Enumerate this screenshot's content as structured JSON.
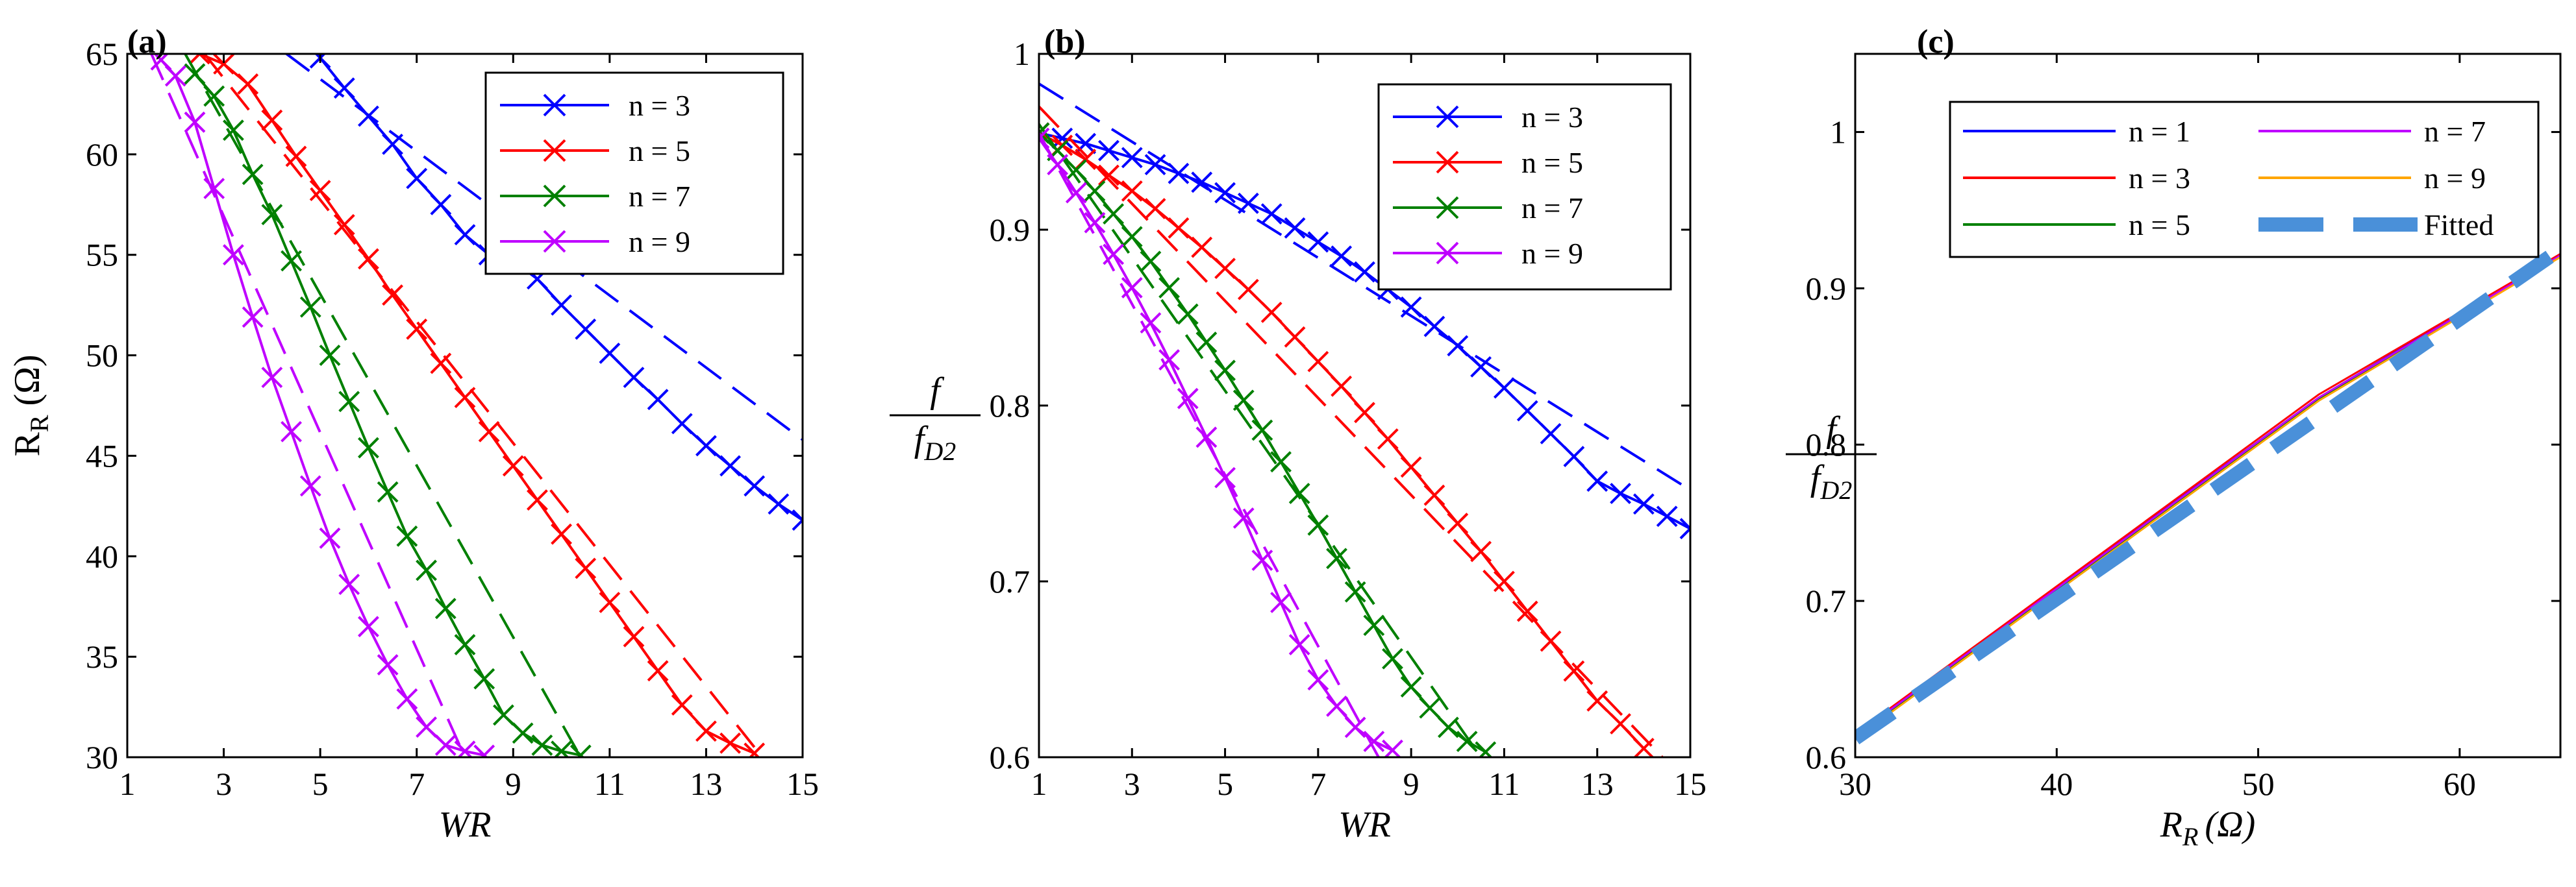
{
  "chart_data": [
    {
      "panel_label": "(a)",
      "type": "line",
      "xlabel": "WR",
      "ylabel": "R_R (Ω)",
      "ylabel_main": "R",
      "ylabel_sub": "R",
      "ylabel_unit": "(Ω)",
      "xlim": [
        1,
        15
      ],
      "ylim": [
        30,
        65
      ],
      "x_ticks": [
        1,
        3,
        5,
        7,
        9,
        11,
        13,
        15
      ],
      "y_ticks": [
        30,
        35,
        40,
        45,
        50,
        55,
        60,
        65
      ],
      "legend": [
        "n = 3",
        "n = 5",
        "n = 7",
        "n = 9"
      ],
      "legend_position": "top-right",
      "series": [
        {
          "name": "n = 3",
          "color": "#0000ff",
          "x": [
            5.0,
            5.5,
            6.0,
            6.5,
            7.0,
            7.5,
            8.0,
            8.5,
            9.0,
            9.5,
            10.0,
            10.5,
            11.0,
            11.5,
            12.0,
            12.5,
            13.0,
            13.5,
            14.0,
            14.5,
            15.0
          ],
          "y": [
            64.8,
            63.3,
            61.9,
            60.5,
            58.8,
            57.5,
            56.0,
            55.0,
            54.7,
            53.8,
            52.5,
            51.3,
            50.1,
            48.9,
            47.8,
            46.6,
            45.5,
            44.5,
            43.5,
            42.6,
            41.8
          ],
          "fit_x": [
            4.3,
            15.0
          ],
          "fit_y": [
            65.0,
            45.8
          ]
        },
        {
          "name": "n = 5",
          "color": "#ff0000",
          "x": [
            2.5,
            3.0,
            3.5,
            4.0,
            4.5,
            5.0,
            5.5,
            6.0,
            6.5,
            7.0,
            7.5,
            8.0,
            8.5,
            9.0,
            9.5,
            10.0,
            10.5,
            11.0,
            11.5,
            12.0,
            12.5,
            13.0,
            13.5,
            14.0
          ],
          "y": [
            65.0,
            64.5,
            63.5,
            61.7,
            59.9,
            58.2,
            56.5,
            54.8,
            53.0,
            51.3,
            49.6,
            47.9,
            46.2,
            44.5,
            42.8,
            41.1,
            39.4,
            37.7,
            36.0,
            34.3,
            32.6,
            31.3,
            30.7,
            30.2
          ],
          "fit_x": [
            2.6,
            14.0
          ],
          "fit_y": [
            65.0,
            30.5
          ]
        },
        {
          "name": "n = 7",
          "color": "#008000",
          "x": [
            2.4,
            2.8,
            3.2,
            3.6,
            4.0,
            4.4,
            4.8,
            5.2,
            5.6,
            6.0,
            6.4,
            6.8,
            7.2,
            7.6,
            8.0,
            8.4,
            8.8,
            9.2,
            9.6,
            10.0,
            10.4
          ],
          "y": [
            64.0,
            62.9,
            61.2,
            59.0,
            57.0,
            54.7,
            52.4,
            50.0,
            47.7,
            45.4,
            43.2,
            41.0,
            39.3,
            37.4,
            35.6,
            33.9,
            32.1,
            31.2,
            30.6,
            30.3,
            30.1
          ],
          "fit_x": [
            2.2,
            10.4
          ],
          "fit_y": [
            65.0,
            30.0
          ]
        },
        {
          "name": "n = 9",
          "color": "#bf00ff",
          "x": [
            1.7,
            2.0,
            2.4,
            2.8,
            3.2,
            3.6,
            4.0,
            4.4,
            4.8,
            5.2,
            5.6,
            6.0,
            6.4,
            6.8,
            7.2,
            7.6,
            8.0,
            8.4
          ],
          "y": [
            64.7,
            63.9,
            61.6,
            58.3,
            55.0,
            51.9,
            48.9,
            46.2,
            43.5,
            40.9,
            38.6,
            36.5,
            34.6,
            32.9,
            31.5,
            30.6,
            30.3,
            30.1
          ],
          "fit_x": [
            1.5,
            8.0
          ],
          "fit_y": [
            65.0,
            30.0
          ]
        }
      ]
    },
    {
      "panel_label": "(b)",
      "type": "line",
      "xlabel": "WR",
      "ylabel": "f / f_D2",
      "ylabel_num": "f",
      "ylabel_den": "f",
      "ylabel_den_sub": "D2",
      "xlim": [
        1,
        15
      ],
      "ylim": [
        0.6,
        1.0
      ],
      "x_ticks": [
        1,
        3,
        5,
        7,
        9,
        11,
        13,
        15
      ],
      "y_ticks": [
        0.6,
        0.7,
        0.8,
        0.9,
        1
      ],
      "y_tick_labels": [
        "0.6",
        "0.7",
        "0.8",
        "0.9",
        "1"
      ],
      "legend": [
        "n = 3",
        "n = 5",
        "n = 7",
        "n = 9"
      ],
      "legend_position": "top-right",
      "series": [
        {
          "name": "n = 3",
          "color": "#0000ff",
          "x": [
            1.0,
            1.5,
            2.0,
            2.5,
            3.0,
            3.5,
            4.0,
            4.5,
            5.0,
            5.5,
            6.0,
            6.5,
            7.0,
            7.5,
            8.0,
            8.5,
            9.0,
            9.5,
            10.0,
            10.5,
            11.0,
            11.5,
            12.0,
            12.5,
            13.0,
            13.5,
            14.0,
            14.5,
            15.0
          ],
          "y": [
            0.955,
            0.952,
            0.949,
            0.945,
            0.941,
            0.937,
            0.932,
            0.927,
            0.921,
            0.915,
            0.909,
            0.901,
            0.893,
            0.885,
            0.876,
            0.866,
            0.856,
            0.845,
            0.834,
            0.822,
            0.81,
            0.797,
            0.784,
            0.771,
            0.757,
            0.75,
            0.744,
            0.737,
            0.73
          ],
          "fit_x": [
            1.0,
            15.0
          ],
          "fit_y": [
            0.983,
            0.752
          ]
        },
        {
          "name": "n = 5",
          "color": "#ff0000",
          "x": [
            1.0,
            1.5,
            2.0,
            2.5,
            3.0,
            3.5,
            4.0,
            4.5,
            5.0,
            5.5,
            6.0,
            6.5,
            7.0,
            7.5,
            8.0,
            8.5,
            9.0,
            9.5,
            10.0,
            10.5,
            11.0,
            11.5,
            12.0,
            12.5,
            13.0,
            13.5,
            14.0
          ],
          "y": [
            0.955,
            0.948,
            0.94,
            0.931,
            0.922,
            0.912,
            0.901,
            0.89,
            0.878,
            0.866,
            0.853,
            0.839,
            0.825,
            0.811,
            0.796,
            0.781,
            0.765,
            0.749,
            0.733,
            0.717,
            0.7,
            0.683,
            0.666,
            0.649,
            0.632,
            0.619,
            0.605
          ],
          "fit_x": [
            1.0,
            14.4
          ],
          "fit_y": [
            0.97,
            0.6
          ]
        },
        {
          "name": "n = 7",
          "color": "#008000",
          "x": [
            1.0,
            1.4,
            1.8,
            2.2,
            2.6,
            3.0,
            3.4,
            3.8,
            4.2,
            4.6,
            5.0,
            5.4,
            5.8,
            6.2,
            6.6,
            7.0,
            7.4,
            7.8,
            8.2,
            8.6,
            9.0,
            9.4,
            9.8,
            10.2,
            10.6
          ],
          "y": [
            0.955,
            0.945,
            0.934,
            0.922,
            0.909,
            0.896,
            0.882,
            0.867,
            0.852,
            0.836,
            0.82,
            0.803,
            0.786,
            0.768,
            0.75,
            0.732,
            0.713,
            0.694,
            0.675,
            0.656,
            0.64,
            0.628,
            0.617,
            0.609,
            0.603
          ],
          "fit_x": [
            1.0,
            10.5
          ],
          "fit_y": [
            0.96,
            0.6
          ]
        },
        {
          "name": "n = 9",
          "color": "#bf00ff",
          "x": [
            1.0,
            1.4,
            1.8,
            2.2,
            2.6,
            3.0,
            3.4,
            3.8,
            4.2,
            4.6,
            5.0,
            5.4,
            5.8,
            6.2,
            6.6,
            7.0,
            7.4,
            7.8,
            8.2,
            8.6
          ],
          "y": [
            0.952,
            0.937,
            0.921,
            0.904,
            0.886,
            0.867,
            0.847,
            0.826,
            0.804,
            0.782,
            0.759,
            0.736,
            0.712,
            0.688,
            0.664,
            0.644,
            0.629,
            0.617,
            0.609,
            0.604
          ],
          "fit_x": [
            1.0,
            8.3
          ],
          "fit_y": [
            0.955,
            0.6
          ]
        }
      ]
    },
    {
      "panel_label": "(c)",
      "type": "line",
      "xlabel": "R_R (Ω)",
      "xlabel_main": "R",
      "xlabel_sub": "R",
      "xlabel_unit": "(Ω)",
      "ylabel": "f / f_D2",
      "ylabel_num": "f",
      "ylabel_den": "f",
      "ylabel_den_sub": "D2",
      "xlim": [
        30,
        65
      ],
      "ylim": [
        0.6,
        1.05
      ],
      "x_ticks": [
        30,
        40,
        50,
        60
      ],
      "y_ticks": [
        0.6,
        0.7,
        0.8,
        0.9,
        1
      ],
      "y_tick_labels": [
        "0.6",
        "0.7",
        "0.8",
        "0.9",
        "1"
      ],
      "legend": [
        "n = 1",
        "n = 3",
        "n = 5",
        "n = 7",
        "n = 9",
        "Fitted"
      ],
      "legend_position": "top",
      "series": [
        {
          "name": "n = 1",
          "color": "#0000ff",
          "x": [
            30,
            53,
            65
          ],
          "y": [
            0.615,
            0.83,
            0.922
          ]
        },
        {
          "name": "n = 3",
          "color": "#ff0000",
          "x": [
            30,
            53,
            65
          ],
          "y": [
            0.615,
            0.832,
            0.922
          ]
        },
        {
          "name": "n = 5",
          "color": "#008000",
          "x": [
            30,
            53,
            65
          ],
          "y": [
            0.613,
            0.829,
            0.921
          ]
        },
        {
          "name": "n = 7",
          "color": "#bf00ff",
          "x": [
            30,
            53,
            65
          ],
          "y": [
            0.614,
            0.83,
            0.921
          ]
        },
        {
          "name": "n = 9",
          "color": "#ffa500",
          "x": [
            30,
            53,
            65
          ],
          "y": [
            0.612,
            0.828,
            0.92
          ]
        },
        {
          "name": "Fitted",
          "color": "#4a90d9",
          "x": [
            30,
            65
          ],
          "y": [
            0.612,
            0.925
          ]
        }
      ]
    }
  ]
}
